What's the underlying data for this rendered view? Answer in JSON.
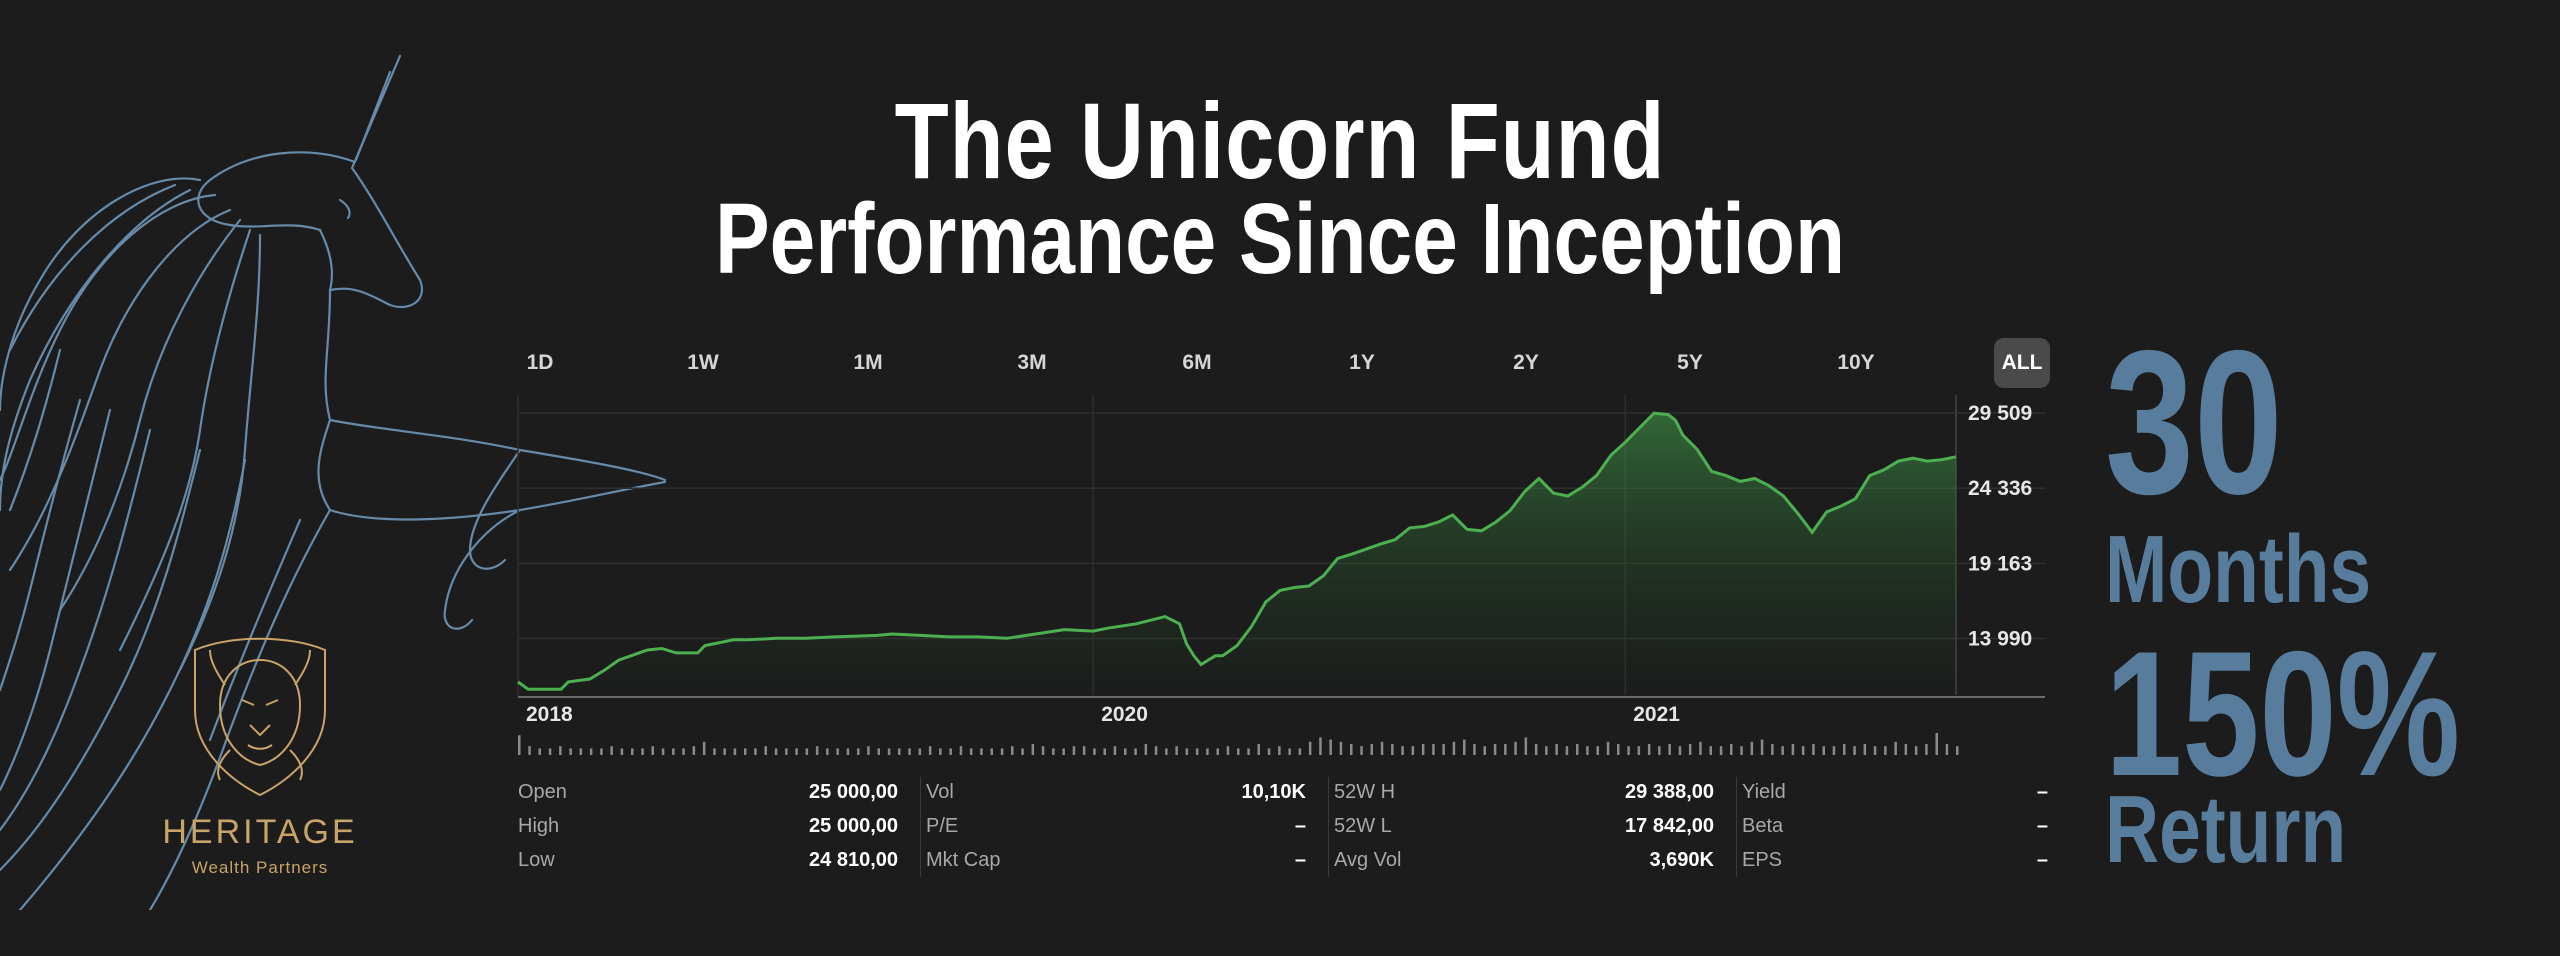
{
  "title": "The Unicorn Fund",
  "subtitle": "Performance Since Inception",
  "brand": {
    "name": "HERITAGE",
    "tagline": "Wealth Partners",
    "icon": "lion-shield-icon"
  },
  "decoration": {
    "icon": "unicorn-icon",
    "color": "#6f97b8"
  },
  "time_ranges": [
    "1D",
    "1W",
    "1M",
    "3M",
    "6M",
    "1Y",
    "2Y",
    "5Y",
    "10Y",
    "ALL"
  ],
  "active_range": "ALL",
  "stats": [
    [
      {
        "label": "Open",
        "value": "25 000,00"
      },
      {
        "label": "High",
        "value": "25 000,00"
      },
      {
        "label": "Low",
        "value": "24 810,00"
      }
    ],
    [
      {
        "label": "Vol",
        "value": "10,10K"
      },
      {
        "label": "P/E",
        "value": "–"
      },
      {
        "label": "Mkt Cap",
        "value": "–"
      }
    ],
    [
      {
        "label": "52W H",
        "value": "29 388,00"
      },
      {
        "label": "52W L",
        "value": "17 842,00"
      },
      {
        "label": "Avg Vol",
        "value": "3,690K"
      }
    ],
    [
      {
        "label": "Yield",
        "value": "–"
      },
      {
        "label": "Beta",
        "value": "–"
      },
      {
        "label": "EPS",
        "value": "–"
      }
    ]
  ],
  "highlight": {
    "number": "30",
    "unit": "Months",
    "percent": "150%",
    "label": "Return",
    "color": "#587d9c"
  },
  "chart_data": {
    "type": "area",
    "line_color": "#4caf50",
    "grid": true,
    "x_tick_labels": [
      "2018",
      "2020",
      "2021"
    ],
    "x_tick_positions": [
      0,
      0.4,
      0.77
    ],
    "y_ticks": [
      29509,
      24336,
      19163,
      13990
    ],
    "ylim": [
      10100,
      30200
    ],
    "x": [
      0,
      0.007,
      0.02,
      0.03,
      0.035,
      0.05,
      0.06,
      0.07,
      0.09,
      0.1,
      0.11,
      0.125,
      0.13,
      0.15,
      0.16,
      0.18,
      0.2,
      0.22,
      0.25,
      0.26,
      0.28,
      0.3,
      0.32,
      0.34,
      0.36,
      0.38,
      0.4,
      0.41,
      0.43,
      0.45,
      0.46,
      0.465,
      0.47,
      0.475,
      0.48,
      0.485,
      0.49,
      0.5,
      0.51,
      0.52,
      0.53,
      0.54,
      0.55,
      0.56,
      0.57,
      0.58,
      0.6,
      0.61,
      0.62,
      0.63,
      0.64,
      0.65,
      0.66,
      0.67,
      0.68,
      0.69,
      0.7,
      0.71,
      0.72,
      0.73,
      0.74,
      0.75,
      0.76,
      0.77,
      0.78,
      0.79,
      0.8,
      0.805,
      0.81,
      0.82,
      0.83,
      0.84,
      0.85,
      0.86,
      0.87,
      0.88,
      0.89,
      0.9,
      0.91,
      0.92,
      0.93,
      0.94,
      0.95,
      0.96,
      0.97,
      0.98,
      0.99,
      1
    ],
    "values": [
      11000,
      10500,
      10500,
      10500,
      11000,
      11200,
      11800,
      12500,
      13200,
      13300,
      13000,
      13000,
      13500,
      13900,
      13900,
      14000,
      14000,
      14100,
      14200,
      14300,
      14200,
      14100,
      14100,
      14000,
      14300,
      14600,
      14500,
      14700,
      15000,
      15500,
      15000,
      13600,
      12800,
      12200,
      12500,
      12800,
      12800,
      13500,
      14800,
      16500,
      17300,
      17500,
      17600,
      18300,
      19500,
      19800,
      20500,
      20800,
      21600,
      21700,
      22000,
      22500,
      21500,
      21400,
      22000,
      22800,
      24100,
      25000,
      24000,
      23800,
      24400,
      25200,
      26600,
      27500,
      28500,
      29500,
      29400,
      29000,
      28000,
      27000,
      25500,
      25200,
      24800,
      25000,
      24500,
      23800,
      22600,
      21300,
      22700,
      23100,
      23600,
      25200,
      25600,
      26200,
      26400,
      26200,
      26300,
      26500
    ],
    "volume_bars": [
      9,
      4,
      3,
      3,
      4,
      3,
      3,
      3,
      3,
      4,
      3,
      3,
      3,
      4,
      3,
      3,
      3,
      4,
      6,
      3,
      3,
      3,
      3,
      3,
      4,
      3,
      3,
      3,
      3,
      4,
      3,
      3,
      3,
      3,
      4,
      3,
      3,
      3,
      3,
      3,
      4,
      3,
      3,
      4,
      3,
      3,
      3,
      3,
      4,
      3,
      5,
      4,
      3,
      3,
      4,
      4,
      3,
      3,
      4,
      3,
      3,
      5,
      4,
      3,
      4,
      3,
      3,
      3,
      3,
      4,
      3,
      3,
      5,
      3,
      4,
      3,
      3,
      6,
      8,
      7,
      6,
      5,
      4,
      5,
      6,
      5,
      4,
      4,
      5,
      5,
      5,
      6,
      7,
      5,
      4,
      5,
      5,
      6,
      8,
      5,
      4,
      5,
      4,
      5,
      4,
      4,
      6,
      5,
      4,
      4,
      5,
      4,
      5,
      4,
      5,
      6,
      4,
      4,
      5,
      4,
      6,
      7,
      5,
      4,
      5,
      4,
      5,
      4,
      4,
      5,
      4,
      5,
      4,
      4,
      6,
      5,
      4,
      5,
      10,
      5,
      4
    ]
  }
}
